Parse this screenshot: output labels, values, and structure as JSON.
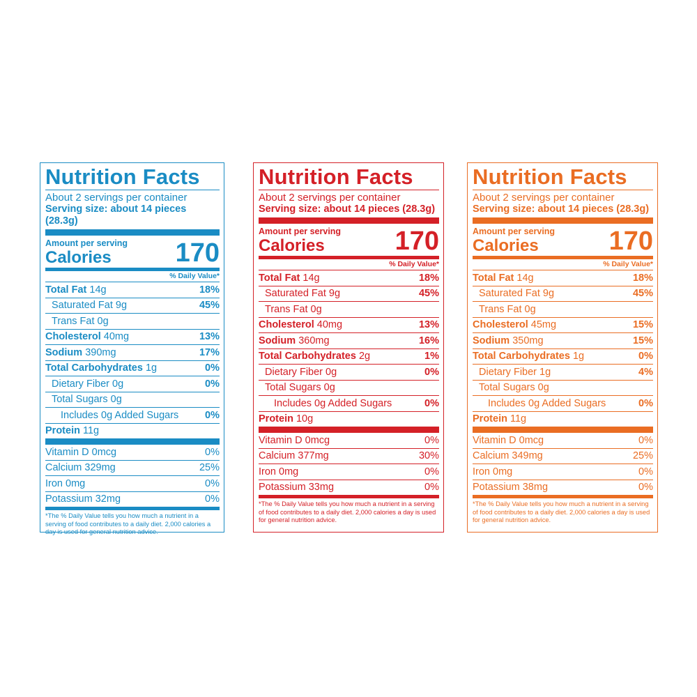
{
  "common": {
    "title": "Nutrition Facts",
    "servings": "About 2 servings per container",
    "serving_size": "Serving size: about 14 pieces (28.3g)",
    "amount_per_serving": "Amount per serving",
    "calories_label": "Calories",
    "dv_header": "% Daily Value*",
    "footnote": "*The % Daily Value tells you how much a nutrient in a serving of food contributes to a daily diet. 2,000 calories a day is used for general nutrition advice."
  },
  "labels": [
    {
      "color": "#1a8cc4",
      "calories": "170",
      "nutrients": [
        {
          "name": "Total Fat",
          "amount": "14g",
          "dv": "18%",
          "bold": true,
          "indent": 0
        },
        {
          "name": "Saturated Fat",
          "amount": "9g",
          "dv": "45%",
          "bold": false,
          "indent": 1
        },
        {
          "name": "Trans Fat",
          "amount": "0g",
          "dv": "",
          "bold": false,
          "indent": 1
        },
        {
          "name": "Cholesterol",
          "amount": "40mg",
          "dv": "13%",
          "bold": true,
          "indent": 0
        },
        {
          "name": "Sodium",
          "amount": "390mg",
          "dv": "17%",
          "bold": true,
          "indent": 0
        },
        {
          "name": "Total Carbohydrates",
          "amount": "1g",
          "dv": "0%",
          "bold": true,
          "indent": 0
        },
        {
          "name": "Dietary Fiber",
          "amount": "0g",
          "dv": "0%",
          "bold": false,
          "indent": 1
        },
        {
          "name": "Total Sugars",
          "amount": "0g",
          "dv": "",
          "bold": false,
          "indent": 1
        },
        {
          "name": "Includes 0g Added Sugars",
          "amount": "",
          "dv": "0%",
          "bold": false,
          "indent": 2
        },
        {
          "name": "Protein",
          "amount": "11g",
          "dv": "",
          "bold": true,
          "indent": 0
        }
      ],
      "vitamins": [
        {
          "name": "Vitamin D",
          "amount": "0mcg",
          "dv": "0%"
        },
        {
          "name": "Calcium",
          "amount": "329mg",
          "dv": "25%"
        },
        {
          "name": "Iron",
          "amount": "0mg",
          "dv": "0%"
        },
        {
          "name": "Potassium",
          "amount": "32mg",
          "dv": "0%"
        }
      ]
    },
    {
      "color": "#d42027",
      "calories": "170",
      "nutrients": [
        {
          "name": "Total Fat",
          "amount": "14g",
          "dv": "18%",
          "bold": true,
          "indent": 0
        },
        {
          "name": "Saturated Fat",
          "amount": "9g",
          "dv": "45%",
          "bold": false,
          "indent": 1
        },
        {
          "name": "Trans Fat",
          "amount": "0g",
          "dv": "",
          "bold": false,
          "indent": 1
        },
        {
          "name": "Cholesterol",
          "amount": "40mg",
          "dv": "13%",
          "bold": true,
          "indent": 0
        },
        {
          "name": "Sodium",
          "amount": "360mg",
          "dv": "16%",
          "bold": true,
          "indent": 0
        },
        {
          "name": "Total Carbohydrates",
          "amount": "2g",
          "dv": "1%",
          "bold": true,
          "indent": 0
        },
        {
          "name": "Dietary Fiber",
          "amount": "0g",
          "dv": "0%",
          "bold": false,
          "indent": 1
        },
        {
          "name": "Total Sugars",
          "amount": "0g",
          "dv": "",
          "bold": false,
          "indent": 1
        },
        {
          "name": "Includes 0g Added Sugars",
          "amount": "",
          "dv": "0%",
          "bold": false,
          "indent": 2
        },
        {
          "name": "Protein",
          "amount": "10g",
          "dv": "",
          "bold": true,
          "indent": 0
        }
      ],
      "vitamins": [
        {
          "name": "Vitamin D",
          "amount": "0mcg",
          "dv": "0%"
        },
        {
          "name": "Calcium",
          "amount": "377mg",
          "dv": "30%"
        },
        {
          "name": "Iron",
          "amount": "0mg",
          "dv": "0%"
        },
        {
          "name": "Potassium",
          "amount": "33mg",
          "dv": "0%"
        }
      ]
    },
    {
      "color": "#ea6d23",
      "calories": "170",
      "nutrients": [
        {
          "name": "Total Fat",
          "amount": "14g",
          "dv": "18%",
          "bold": true,
          "indent": 0
        },
        {
          "name": "Saturated Fat",
          "amount": "9g",
          "dv": "45%",
          "bold": false,
          "indent": 1
        },
        {
          "name": "Trans Fat",
          "amount": "0g",
          "dv": "",
          "bold": false,
          "indent": 1
        },
        {
          "name": "Cholesterol",
          "amount": "45mg",
          "dv": "15%",
          "bold": true,
          "indent": 0
        },
        {
          "name": "Sodium",
          "amount": "350mg",
          "dv": "15%",
          "bold": true,
          "indent": 0
        },
        {
          "name": "Total Carbohydrates",
          "amount": "1g",
          "dv": "0%",
          "bold": true,
          "indent": 0
        },
        {
          "name": "Dietary Fiber",
          "amount": "1g",
          "dv": "4%",
          "bold": false,
          "indent": 1
        },
        {
          "name": "Total Sugars",
          "amount": "0g",
          "dv": "",
          "bold": false,
          "indent": 1
        },
        {
          "name": "Includes 0g Added Sugars",
          "amount": "",
          "dv": "0%",
          "bold": false,
          "indent": 2
        },
        {
          "name": "Protein",
          "amount": "11g",
          "dv": "",
          "bold": true,
          "indent": 0
        }
      ],
      "vitamins": [
        {
          "name": "Vitamin D",
          "amount": "0mcg",
          "dv": "0%"
        },
        {
          "name": "Calcium",
          "amount": "349mg",
          "dv": "25%"
        },
        {
          "name": "Iron",
          "amount": "0mg",
          "dv": "0%"
        },
        {
          "name": "Potassium",
          "amount": "38mg",
          "dv": "0%"
        }
      ]
    }
  ]
}
